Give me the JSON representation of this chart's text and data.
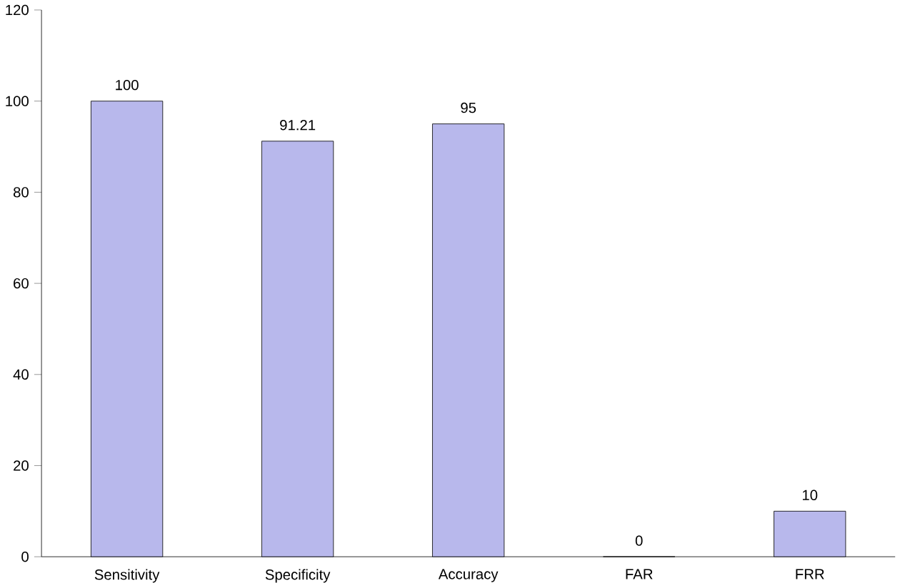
{
  "chart_data": {
    "type": "bar",
    "categories": [
      "Sensitivity",
      "Specificity",
      "Accuracy",
      "FAR",
      "FRR"
    ],
    "values": [
      100,
      91.21,
      95,
      0,
      10
    ],
    "colors": [
      "#b8b8ec",
      "#b8b8ec",
      "#b8b8ec",
      "#b8b8ec",
      "#b8b8ec"
    ],
    "ylim": [
      0,
      120
    ],
    "yticks": [
      0,
      20,
      40,
      60,
      80,
      100,
      120
    ],
    "data_labels": true,
    "grid": false
  }
}
